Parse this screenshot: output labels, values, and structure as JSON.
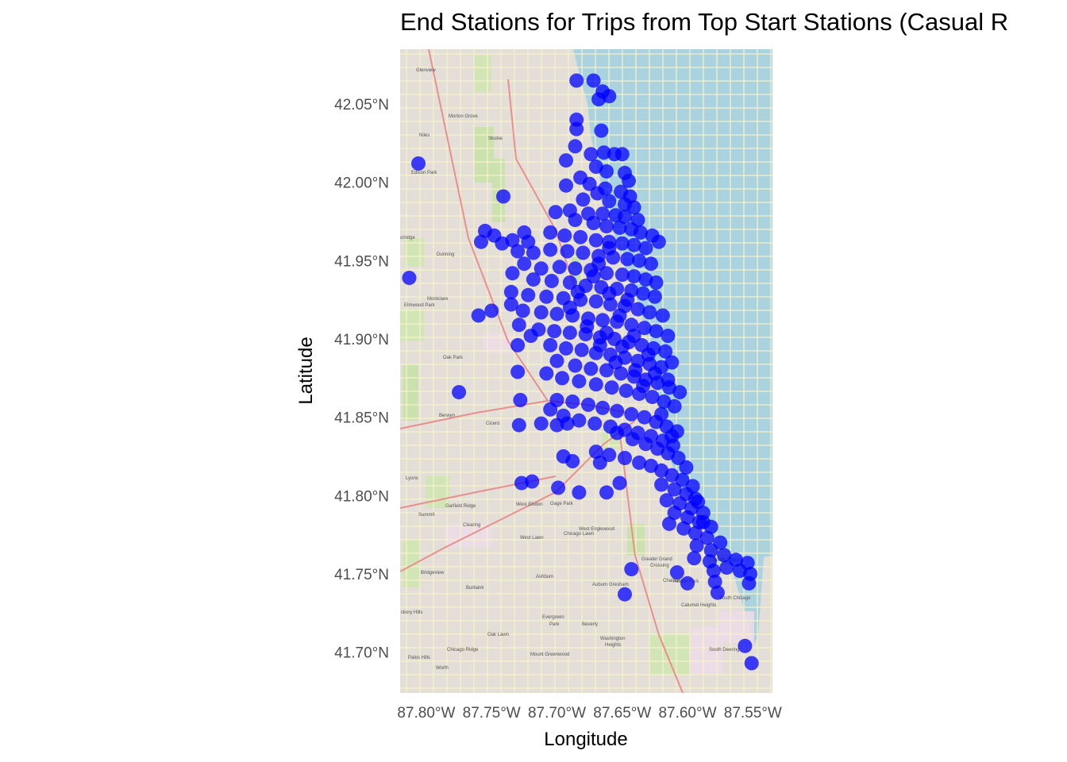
{
  "chart_data": {
    "type": "scatter",
    "title": "End Stations for Trips from Top Start Stations (Casual R",
    "xlabel": "Longitude",
    "ylabel": "Latitude",
    "xlim": [
      -87.82,
      -87.535
    ],
    "ylim": [
      41.674,
      42.085
    ],
    "x_ticks": [
      {
        "value": -87.8,
        "label": "87.80°W"
      },
      {
        "value": -87.75,
        "label": "87.75°W"
      },
      {
        "value": -87.7,
        "label": "87.70°W"
      },
      {
        "value": -87.65,
        "label": "87.65°W"
      },
      {
        "value": -87.6,
        "label": "87.60°W"
      },
      {
        "value": -87.55,
        "label": "87.55°W"
      }
    ],
    "y_ticks": [
      {
        "value": 42.05,
        "label": "42.05°N"
      },
      {
        "value": 42.0,
        "label": "42.00°N"
      },
      {
        "value": 41.95,
        "label": "41.95°N"
      },
      {
        "value": 41.9,
        "label": "41.90°N"
      },
      {
        "value": 41.85,
        "label": "41.85°N"
      },
      {
        "value": 41.8,
        "label": "41.80°N"
      },
      {
        "value": 41.75,
        "label": "41.75°N"
      },
      {
        "value": 41.7,
        "label": "41.70°N"
      }
    ],
    "point_color": "#0000ff",
    "point_opacity": 0.75,
    "basemap": "OpenStreetMap",
    "legend": "none",
    "points": [
      [
        -87.806,
        42.012
      ],
      [
        -87.685,
        42.065
      ],
      [
        -87.672,
        42.065
      ],
      [
        -87.665,
        42.058
      ],
      [
        -87.668,
        42.053
      ],
      [
        -87.66,
        42.055
      ],
      [
        -87.685,
        42.04
      ],
      [
        -87.685,
        42.034
      ],
      [
        -87.666,
        42.033
      ],
      [
        -87.686,
        42.023
      ],
      [
        -87.674,
        42.018
      ],
      [
        -87.664,
        42.019
      ],
      [
        -87.656,
        42.018
      ],
      [
        -87.65,
        42.018
      ],
      [
        -87.693,
        42.014
      ],
      [
        -87.67,
        42.01
      ],
      [
        -87.662,
        42.007
      ],
      [
        -87.648,
        42.006
      ],
      [
        -87.645,
        42.001
      ],
      [
        -87.682,
        42.003
      ],
      [
        -87.675,
        41.999
      ],
      [
        -87.663,
        41.996
      ],
      [
        -87.651,
        41.994
      ],
      [
        -87.693,
        41.998
      ],
      [
        -87.669,
        41.993
      ],
      [
        -87.644,
        41.991
      ],
      [
        -87.68,
        41.989
      ],
      [
        -87.66,
        41.988
      ],
      [
        -87.648,
        41.986
      ],
      [
        -87.641,
        41.984
      ],
      [
        -87.741,
        41.991
      ],
      [
        -87.69,
        41.982
      ],
      [
        -87.676,
        41.98
      ],
      [
        -87.665,
        41.98
      ],
      [
        -87.655,
        41.979
      ],
      [
        -87.648,
        41.978
      ],
      [
        -87.638,
        41.976
      ],
      [
        -87.701,
        41.981
      ],
      [
        -87.686,
        41.976
      ],
      [
        -87.672,
        41.974
      ],
      [
        -87.662,
        41.972
      ],
      [
        -87.652,
        41.971
      ],
      [
        -87.643,
        41.97
      ],
      [
        -87.636,
        41.968
      ],
      [
        -87.627,
        41.966
      ],
      [
        -87.755,
        41.969
      ],
      [
        -87.748,
        41.966
      ],
      [
        -87.734,
        41.963
      ],
      [
        -87.758,
        41.962
      ],
      [
        -87.742,
        41.961
      ],
      [
        -87.725,
        41.968
      ],
      [
        -87.722,
        41.962
      ],
      [
        -87.705,
        41.968
      ],
      [
        -87.694,
        41.966
      ],
      [
        -87.682,
        41.965
      ],
      [
        -87.67,
        41.963
      ],
      [
        -87.66,
        41.962
      ],
      [
        -87.65,
        41.961
      ],
      [
        -87.641,
        41.96
      ],
      [
        -87.632,
        41.958
      ],
      [
        -87.622,
        41.962
      ],
      [
        -87.73,
        41.956
      ],
      [
        -87.718,
        41.955
      ],
      [
        -87.705,
        41.957
      ],
      [
        -87.692,
        41.956
      ],
      [
        -87.68,
        41.955
      ],
      [
        -87.668,
        41.953
      ],
      [
        -87.657,
        41.952
      ],
      [
        -87.646,
        41.951
      ],
      [
        -87.637,
        41.95
      ],
      [
        -87.628,
        41.948
      ],
      [
        -87.725,
        41.948
      ],
      [
        -87.712,
        41.945
      ],
      [
        -87.698,
        41.946
      ],
      [
        -87.686,
        41.945
      ],
      [
        -87.674,
        41.944
      ],
      [
        -87.662,
        41.942
      ],
      [
        -87.65,
        41.941
      ],
      [
        -87.641,
        41.94
      ],
      [
        -87.632,
        41.938
      ],
      [
        -87.624,
        41.936
      ],
      [
        -87.813,
        41.939
      ],
      [
        -87.734,
        41.942
      ],
      [
        -87.718,
        41.938
      ],
      [
        -87.704,
        41.937
      ],
      [
        -87.69,
        41.936
      ],
      [
        -87.678,
        41.934
      ],
      [
        -87.666,
        41.933
      ],
      [
        -87.654,
        41.932
      ],
      [
        -87.643,
        41.931
      ],
      [
        -87.634,
        41.929
      ],
      [
        -87.625,
        41.927
      ],
      [
        -87.735,
        41.93
      ],
      [
        -87.722,
        41.928
      ],
      [
        -87.708,
        41.927
      ],
      [
        -87.695,
        41.926
      ],
      [
        -87.682,
        41.925
      ],
      [
        -87.67,
        41.924
      ],
      [
        -87.659,
        41.922
      ],
      [
        -87.648,
        41.921
      ],
      [
        -87.638,
        41.919
      ],
      [
        -87.629,
        41.917
      ],
      [
        -87.619,
        41.915
      ],
      [
        -87.76,
        41.915
      ],
      [
        -87.75,
        41.918
      ],
      [
        -87.735,
        41.922
      ],
      [
        -87.726,
        41.918
      ],
      [
        -87.712,
        41.917
      ],
      [
        -87.7,
        41.916
      ],
      [
        -87.688,
        41.915
      ],
      [
        -87.676,
        41.913
      ],
      [
        -87.665,
        41.912
      ],
      [
        -87.654,
        41.911
      ],
      [
        -87.643,
        41.909
      ],
      [
        -87.633,
        41.907
      ],
      [
        -87.624,
        41.905
      ],
      [
        -87.615,
        41.902
      ],
      [
        -87.729,
        41.909
      ],
      [
        -87.714,
        41.906
      ],
      [
        -87.702,
        41.905
      ],
      [
        -87.69,
        41.904
      ],
      [
        -87.678,
        41.903
      ],
      [
        -87.667,
        41.901
      ],
      [
        -87.656,
        41.9
      ],
      [
        -87.645,
        41.898
      ],
      [
        -87.635,
        41.896
      ],
      [
        -87.626,
        41.894
      ],
      [
        -87.617,
        41.892
      ],
      [
        -87.72,
        41.902
      ],
      [
        -87.73,
        41.896
      ],
      [
        -87.705,
        41.896
      ],
      [
        -87.693,
        41.894
      ],
      [
        -87.681,
        41.893
      ],
      [
        -87.67,
        41.891
      ],
      [
        -87.659,
        41.89
      ],
      [
        -87.648,
        41.888
      ],
      [
        -87.638,
        41.886
      ],
      [
        -87.629,
        41.884
      ],
      [
        -87.62,
        41.882
      ],
      [
        -87.612,
        41.885
      ],
      [
        -87.7,
        41.886
      ],
      [
        -87.686,
        41.883
      ],
      [
        -87.674,
        41.881
      ],
      [
        -87.662,
        41.88
      ],
      [
        -87.651,
        41.878
      ],
      [
        -87.641,
        41.876
      ],
      [
        -87.632,
        41.874
      ],
      [
        -87.623,
        41.872
      ],
      [
        -87.614,
        41.869
      ],
      [
        -87.606,
        41.866
      ],
      [
        -87.73,
        41.879
      ],
      [
        -87.708,
        41.878
      ],
      [
        -87.696,
        41.875
      ],
      [
        -87.683,
        41.873
      ],
      [
        -87.67,
        41.871
      ],
      [
        -87.658,
        41.869
      ],
      [
        -87.647,
        41.867
      ],
      [
        -87.637,
        41.865
      ],
      [
        -87.627,
        41.863
      ],
      [
        -87.618,
        41.86
      ],
      [
        -87.61,
        41.857
      ],
      [
        -87.775,
        41.866
      ],
      [
        -87.728,
        41.861
      ],
      [
        -87.7,
        41.861
      ],
      [
        -87.688,
        41.86
      ],
      [
        -87.676,
        41.858
      ],
      [
        -87.665,
        41.856
      ],
      [
        -87.654,
        41.854
      ],
      [
        -87.643,
        41.852
      ],
      [
        -87.633,
        41.85
      ],
      [
        -87.624,
        41.847
      ],
      [
        -87.616,
        41.844
      ],
      [
        -87.608,
        41.841
      ],
      [
        -87.705,
        41.855
      ],
      [
        -87.695,
        41.851
      ],
      [
        -87.683,
        41.848
      ],
      [
        -87.671,
        41.846
      ],
      [
        -87.659,
        41.844
      ],
      [
        -87.648,
        41.842
      ],
      [
        -87.638,
        41.84
      ],
      [
        -87.628,
        41.838
      ],
      [
        -87.619,
        41.835
      ],
      [
        -87.611,
        41.832
      ],
      [
        -87.729,
        41.845
      ],
      [
        -87.712,
        41.846
      ],
      [
        -87.7,
        41.845
      ],
      [
        -87.692,
        41.846
      ],
      [
        -87.654,
        41.84
      ],
      [
        -87.642,
        41.836
      ],
      [
        -87.632,
        41.833
      ],
      [
        -87.623,
        41.83
      ],
      [
        -87.615,
        41.827
      ],
      [
        -87.607,
        41.824
      ],
      [
        -87.67,
        41.828
      ],
      [
        -87.66,
        41.826
      ],
      [
        -87.648,
        41.824
      ],
      [
        -87.637,
        41.821
      ],
      [
        -87.628,
        41.819
      ],
      [
        -87.62,
        41.816
      ],
      [
        -87.612,
        41.813
      ],
      [
        -87.604,
        41.81
      ],
      [
        -87.695,
        41.825
      ],
      [
        -87.688,
        41.822
      ],
      [
        -87.667,
        41.821
      ],
      [
        -87.652,
        41.808
      ],
      [
        -87.662,
        41.802
      ],
      [
        -87.62,
        41.807
      ],
      [
        -87.61,
        41.804
      ],
      [
        -87.601,
        41.801
      ],
      [
        -87.594,
        41.798
      ],
      [
        -87.727,
        41.808
      ],
      [
        -87.719,
        41.809
      ],
      [
        -87.699,
        41.805
      ],
      [
        -87.683,
        41.802
      ],
      [
        -87.616,
        41.797
      ],
      [
        -87.606,
        41.795
      ],
      [
        -87.597,
        41.792
      ],
      [
        -87.588,
        41.789
      ],
      [
        -87.61,
        41.789
      ],
      [
        -87.6,
        41.786
      ],
      [
        -87.591,
        41.783
      ],
      [
        -87.582,
        41.78
      ],
      [
        -87.614,
        41.782
      ],
      [
        -87.603,
        41.779
      ],
      [
        -87.594,
        41.776
      ],
      [
        -87.585,
        41.773
      ],
      [
        -87.575,
        41.77
      ],
      [
        -87.593,
        41.768
      ],
      [
        -87.582,
        41.765
      ],
      [
        -87.572,
        41.762
      ],
      [
        -87.563,
        41.759
      ],
      [
        -87.554,
        41.757
      ],
      [
        -87.595,
        41.76
      ],
      [
        -87.583,
        41.758
      ],
      [
        -87.57,
        41.754
      ],
      [
        -87.56,
        41.752
      ],
      [
        -87.552,
        41.75
      ],
      [
        -87.643,
        41.753
      ],
      [
        -87.608,
        41.751
      ],
      [
        -87.6,
        41.744
      ],
      [
        -87.58,
        41.752
      ],
      [
        -87.579,
        41.745
      ],
      [
        -87.577,
        41.738
      ],
      [
        -87.553,
        41.744
      ],
      [
        -87.648,
        41.737
      ],
      [
        -87.556,
        41.704
      ],
      [
        -87.551,
        41.693
      ],
      [
        -87.668,
        41.948
      ],
      [
        -87.66,
        41.929
      ],
      [
        -87.646,
        41.925
      ],
      [
        -87.652,
        41.915
      ],
      [
        -87.662,
        41.904
      ],
      [
        -87.641,
        41.902
      ],
      [
        -87.65,
        41.895
      ],
      [
        -87.63,
        41.89
      ],
      [
        -87.64,
        41.88
      ],
      [
        -87.625,
        41.878
      ],
      [
        -87.615,
        41.874
      ],
      [
        -87.66,
        41.958
      ],
      [
        -87.672,
        41.94
      ],
      [
        -87.684,
        41.93
      ],
      [
        -87.69,
        41.92
      ],
      [
        -87.677,
        41.908
      ],
      [
        -87.667,
        41.896
      ],
      [
        -87.655,
        41.885
      ],
      [
        -87.634,
        41.87
      ],
      [
        -87.62,
        41.852
      ],
      [
        -87.612,
        41.838
      ],
      [
        -87.601,
        41.818
      ],
      [
        -87.596,
        41.806
      ],
      [
        -87.592,
        41.796
      ],
      [
        -87.588,
        41.783
      ]
    ]
  }
}
